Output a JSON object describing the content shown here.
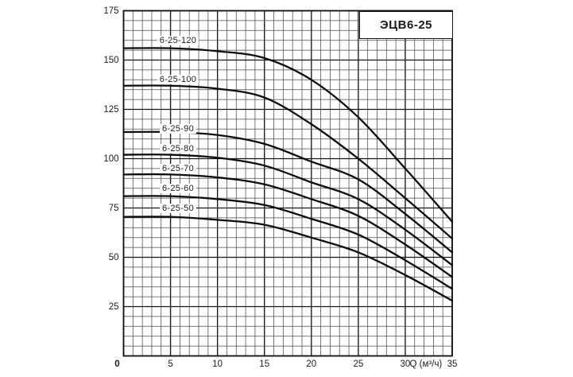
{
  "chart_data": {
    "type": "line",
    "title": "ЭЦВ6-25",
    "xlabel": "Q (м³/ч)",
    "ylabel": "",
    "xlim": [
      0,
      35
    ],
    "ylim": [
      0,
      175
    ],
    "x_ticks": [
      5,
      10,
      15,
      20,
      25,
      30,
      35
    ],
    "y_ticks": [
      25,
      50,
      75,
      100,
      125,
      150,
      175
    ],
    "origin_label": "0",
    "grid": {
      "on": true,
      "x_minor_step": 1,
      "y_minor_step": 5,
      "x_major_step": 5,
      "y_major_step": 25
    },
    "x": [
      0,
      5,
      10,
      15,
      20,
      25,
      30,
      35
    ],
    "series": [
      {
        "name": "6-25-120",
        "values": [
          156,
          156,
          154.5,
          151,
          140,
          121,
          95,
          68
        ],
        "label_q": 5.8,
        "label_h": 160
      },
      {
        "name": "6-25-100",
        "values": [
          137,
          137,
          135.5,
          131,
          117.5,
          100,
          80,
          59.5
        ],
        "label_q": 5.8,
        "label_h": 140
      },
      {
        "name": "6-25-90",
        "values": [
          113.5,
          113.5,
          112,
          107.5,
          98.5,
          89.5,
          72,
          52.5
        ],
        "label_q": 5.8,
        "label_h": 115
      },
      {
        "name": "6-25-80",
        "values": [
          102,
          102,
          100.5,
          96.5,
          88,
          79.5,
          64,
          46
        ],
        "label_q": 5.8,
        "label_h": 105
      },
      {
        "name": "6-25-70",
        "values": [
          92,
          92,
          90.5,
          87,
          79.5,
          71,
          56.5,
          40
        ],
        "label_q": 5.8,
        "label_h": 95
      },
      {
        "name": "6-25-60",
        "values": [
          81,
          81,
          79.5,
          76.5,
          69.5,
          61.5,
          48.5,
          34
        ],
        "label_q": 5.8,
        "label_h": 85
      },
      {
        "name": "6-25-50",
        "values": [
          70.5,
          70.5,
          69,
          66.5,
          60,
          52.5,
          41,
          28
        ],
        "label_q": 5.8,
        "label_h": 75
      }
    ],
    "legend_position": "inline-labels"
  },
  "colors": {
    "background": "#ffffff",
    "curve": "#0d0d0d",
    "grid_minor": "#4a4a4a",
    "grid_major": "#161616",
    "border": "#111111",
    "text": "#1a1a1a"
  }
}
